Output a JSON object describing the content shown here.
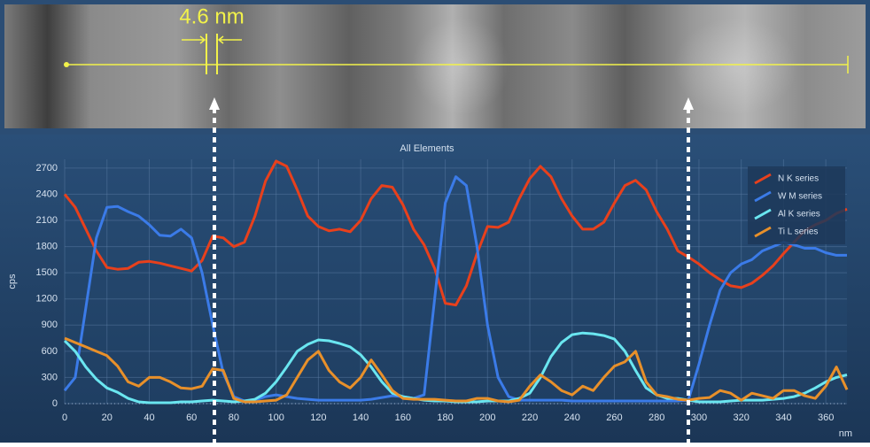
{
  "chart_data": {
    "type": "line",
    "title": "All Elements",
    "image_annotation": "4.6 nm",
    "x_label": "nm",
    "y_label": "cps",
    "x": [
      0,
      5,
      10,
      15,
      20,
      25,
      30,
      35,
      40,
      45,
      50,
      55,
      60,
      65,
      70,
      75,
      80,
      85,
      90,
      95,
      100,
      105,
      110,
      115,
      120,
      125,
      130,
      135,
      140,
      145,
      150,
      155,
      160,
      165,
      170,
      175,
      180,
      185,
      190,
      195,
      200,
      205,
      210,
      215,
      220,
      225,
      230,
      235,
      240,
      245,
      250,
      255,
      260,
      265,
      270,
      275,
      280,
      285,
      290,
      295,
      300,
      305,
      310,
      315,
      320,
      325,
      330,
      335,
      340,
      345,
      350,
      355,
      360,
      365,
      370
    ],
    "series": [
      {
        "name": "N K series",
        "color": "#e8401c",
        "values": [
          2400,
          2250,
          2000,
          1750,
          1560,
          1540,
          1550,
          1620,
          1630,
          1610,
          1580,
          1550,
          1520,
          1640,
          1920,
          1900,
          1800,
          1850,
          2150,
          2550,
          2780,
          2720,
          2450,
          2150,
          2030,
          1980,
          2000,
          1970,
          2100,
          2350,
          2500,
          2480,
          2280,
          2000,
          1820,
          1550,
          1150,
          1130,
          1350,
          1720,
          2030,
          2020,
          2080,
          2350,
          2580,
          2720,
          2600,
          2350,
          2150,
          2000,
          2000,
          2080,
          2300,
          2500,
          2560,
          2450,
          2200,
          2000,
          1750,
          1680,
          1600,
          1500,
          1420,
          1350,
          1330,
          1380,
          1470,
          1580,
          1720,
          1850,
          1980,
          2050,
          2100,
          2180,
          2230
        ]
      },
      {
        "name": "W M series",
        "color": "#3b7be8",
        "values": [
          150,
          300,
          1100,
          1900,
          2250,
          2260,
          2200,
          2150,
          2050,
          1930,
          1920,
          2000,
          1900,
          1500,
          900,
          350,
          80,
          30,
          40,
          80,
          100,
          80,
          60,
          50,
          40,
          40,
          40,
          40,
          40,
          50,
          70,
          90,
          80,
          60,
          100,
          1200,
          2300,
          2600,
          2500,
          1800,
          900,
          300,
          80,
          40,
          40,
          40,
          40,
          40,
          30,
          30,
          30,
          30,
          30,
          30,
          30,
          30,
          30,
          30,
          30,
          40,
          450,
          900,
          1300,
          1500,
          1600,
          1650,
          1750,
          1800,
          1850,
          1820,
          1780,
          1780,
          1730,
          1700,
          1700
        ]
      },
      {
        "name": "Al K series",
        "color": "#6ae6f0",
        "values": [
          720,
          600,
          420,
          280,
          180,
          130,
          60,
          20,
          10,
          10,
          10,
          20,
          20,
          30,
          40,
          30,
          20,
          30,
          50,
          120,
          250,
          420,
          600,
          680,
          730,
          720,
          690,
          650,
          560,
          420,
          250,
          120,
          80,
          60,
          40,
          30,
          30,
          20,
          20,
          20,
          30,
          30,
          30,
          60,
          120,
          300,
          540,
          700,
          790,
          810,
          800,
          780,
          740,
          600,
          380,
          180,
          100,
          60,
          60,
          40,
          20,
          20,
          20,
          30,
          40,
          40,
          40,
          50,
          60,
          80,
          120,
          180,
          250,
          300,
          330
        ]
      },
      {
        "name": "Ti L series",
        "color": "#e8902a",
        "values": [
          750,
          700,
          650,
          600,
          550,
          430,
          250,
          200,
          300,
          300,
          250,
          180,
          170,
          200,
          400,
          380,
          60,
          20,
          20,
          30,
          40,
          100,
          300,
          500,
          600,
          380,
          250,
          180,
          300,
          500,
          330,
          150,
          60,
          50,
          50,
          50,
          40,
          30,
          30,
          60,
          60,
          30,
          20,
          40,
          200,
          330,
          250,
          150,
          100,
          200,
          150,
          300,
          430,
          480,
          600,
          250,
          100,
          80,
          50,
          40,
          60,
          70,
          150,
          120,
          40,
          120,
          90,
          60,
          150,
          150,
          90,
          60,
          200,
          420,
          160
        ]
      }
    ],
    "xlim": [
      0,
      370
    ],
    "xticks": [
      0,
      20,
      40,
      60,
      80,
      100,
      120,
      140,
      160,
      180,
      200,
      220,
      240,
      260,
      280,
      300,
      320,
      340,
      360
    ],
    "ylim": [
      0,
      2800
    ],
    "yticks": [
      0,
      300,
      600,
      900,
      1200,
      1500,
      1800,
      2100,
      2400,
      2700
    ],
    "grid": true,
    "legend": "upper right"
  }
}
